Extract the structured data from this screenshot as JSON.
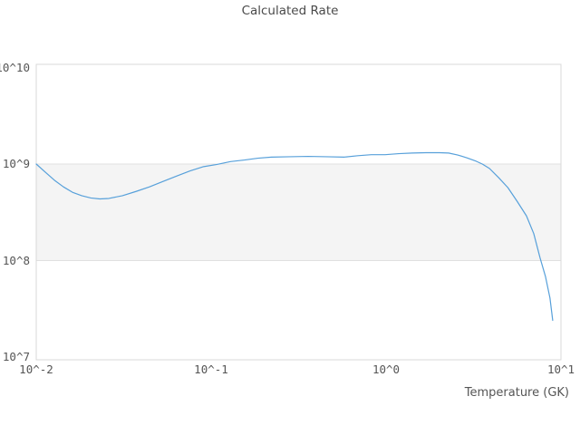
{
  "title": "Calculated Rate",
  "axes": {
    "x": {
      "label": "Temperature (GK)",
      "scale": "log",
      "tick_labels": [
        "10^-2",
        "10^-1",
        "10^0",
        "10^1"
      ],
      "tick_exponents": [
        -2,
        -1,
        0,
        1
      ]
    },
    "y": {
      "label": "",
      "scale": "log",
      "tick_labels": [
        "10^10",
        "10^9",
        "10^8",
        "10^7"
      ],
      "tick_exponents": [
        10,
        9,
        8,
        7
      ],
      "gridline_exponents": [
        9,
        8
      ],
      "shaded_band_exponents": [
        8,
        9
      ]
    }
  },
  "colors": {
    "background": "#ffffff",
    "line": "#57a0da",
    "band_fill": "#f4f4f4",
    "gridline": "#e0e0e0",
    "plot_border": "#d9d9d9",
    "tick_text": "#555555",
    "title_text": "#4a4a4a"
  },
  "chart_data": {
    "type": "line",
    "title": "Calculated Rate",
    "xlabel": "Temperature (GK)",
    "ylabel": "",
    "x_scale": "log",
    "y_scale": "log",
    "xlim": [
      0.01,
      10
    ],
    "ylim": [
      10000000.0,
      10000000000.0
    ],
    "grid": "horizontal gridlines at decades; shaded band between 1e8 and 1e9; no legend",
    "series": [
      {
        "name": "calculated-rate",
        "x": [
          0.01,
          0.0113,
          0.0127,
          0.0143,
          0.0161,
          0.0182,
          0.0205,
          0.0231,
          0.026,
          0.0311,
          0.0372,
          0.0444,
          0.0531,
          0.0634,
          0.0758,
          0.0906,
          0.108,
          0.129,
          0.155,
          0.185,
          0.221,
          0.283,
          0.358,
          0.455,
          0.578,
          0.69,
          0.824,
          0.988,
          1.18,
          1.41,
          1.69,
          2.02,
          2.28,
          2.57,
          2.9,
          3.27,
          3.55,
          3.9,
          4.41,
          4.97,
          5.62,
          6.35,
          6.99,
          7.6,
          8.16,
          8.65,
          8.97
        ],
        "y": [
          1000000000.0,
          820000000.0,
          680000000.0,
          580000000.0,
          510000000.0,
          470000000.0,
          445000000.0,
          435000000.0,
          440000000.0,
          470000000.0,
          520000000.0,
          580000000.0,
          660000000.0,
          750000000.0,
          850000000.0,
          940000000.0,
          990000000.0,
          1060000000.0,
          1100000000.0,
          1150000000.0,
          1180000000.0,
          1190000000.0,
          1200000000.0,
          1190000000.0,
          1180000000.0,
          1220000000.0,
          1250000000.0,
          1250000000.0,
          1280000000.0,
          1300000000.0,
          1310000000.0,
          1310000000.0,
          1300000000.0,
          1240000000.0,
          1160000000.0,
          1070000000.0,
          1000000000.0,
          900000000.0,
          720000000.0,
          570000000.0,
          410000000.0,
          290000000.0,
          190000000.0,
          106000000.0,
          68000000.0,
          41000000.0,
          24000000.0
        ]
      }
    ]
  }
}
